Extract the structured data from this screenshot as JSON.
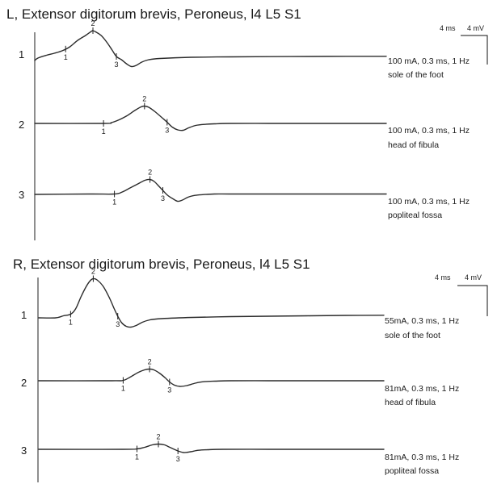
{
  "chart_data": [
    {
      "type": "line",
      "title": "L, Extensor digitorum brevis, Peroneus, l4 L5 S1",
      "scale_labels": [
        "4 ms",
        "4 mV"
      ],
      "traces": [
        {
          "row_label": "1",
          "stimulus": "100 mA, 0.3 ms, 1 Hz",
          "site": "sole of the foot",
          "markers": [
            {
              "label": "1",
              "t": 3.95
            },
            {
              "label": "2",
              "t": 7.45
            },
            {
              "label": "3",
              "t": 10.45
            }
          ],
          "points": [
            [
              0,
              -0.1
            ],
            [
              0.4,
              0.2
            ],
            [
              1.5,
              0.55
            ],
            [
              2.5,
              0.8
            ],
            [
              3.5,
              1.1
            ],
            [
              4.5,
              1.6
            ],
            [
              5.5,
              2.4
            ],
            [
              6.5,
              3.0
            ],
            [
              7.3,
              3.55
            ],
            [
              7.45,
              3.6
            ],
            [
              7.8,
              3.45
            ],
            [
              8.5,
              3.0
            ],
            [
              9.2,
              2.2
            ],
            [
              9.9,
              1.2
            ],
            [
              10.45,
              0.4
            ],
            [
              11.1,
              0.0
            ],
            [
              11.8,
              -0.55
            ],
            [
              12.4,
              -0.85
            ],
            [
              13.0,
              -0.7
            ],
            [
              13.7,
              -0.3
            ],
            [
              14.6,
              0.0
            ],
            [
              16,
              0.15
            ],
            [
              20,
              0.3
            ],
            [
              25,
              0.35
            ],
            [
              30,
              0.38
            ],
            [
              35,
              0.4
            ],
            [
              40,
              0.42
            ],
            [
              45,
              0.42
            ]
          ]
        },
        {
          "row_label": "2",
          "stimulus": "100 mA, 0.3 ms, 1 Hz",
          "site": "head of fibula",
          "markers": [
            {
              "label": "1",
              "t": 8.8
            },
            {
              "label": "2",
              "t": 14.05
            },
            {
              "label": "3",
              "t": 16.95
            }
          ],
          "points": [
            [
              0,
              0
            ],
            [
              8.8,
              0
            ],
            [
              9.8,
              0.1
            ],
            [
              10.8,
              0.45
            ],
            [
              11.8,
              0.95
            ],
            [
              12.8,
              1.6
            ],
            [
              13.6,
              2.05
            ],
            [
              14.05,
              2.15
            ],
            [
              14.6,
              2.0
            ],
            [
              15.4,
              1.45
            ],
            [
              16.3,
              0.7
            ],
            [
              16.95,
              0.15
            ],
            [
              17.6,
              -0.45
            ],
            [
              18.3,
              -0.8
            ],
            [
              19.0,
              -0.85
            ],
            [
              19.7,
              -0.55
            ],
            [
              20.6,
              -0.25
            ],
            [
              21.7,
              -0.12
            ],
            [
              23,
              -0.05
            ],
            [
              25,
              0
            ],
            [
              30,
              0
            ],
            [
              35,
              0
            ],
            [
              40,
              0
            ],
            [
              45,
              0
            ]
          ]
        },
        {
          "row_label": "3",
          "stimulus": "100 mA, 0.3 ms, 1 Hz",
          "site": "popliteal fossa",
          "markers": [
            {
              "label": "1",
              "t": 10.2
            },
            {
              "label": "2",
              "t": 14.75
            },
            {
              "label": "3",
              "t": 16.4
            }
          ],
          "points": [
            [
              0,
              0
            ],
            [
              7,
              0.05
            ],
            [
              10.2,
              0.05
            ],
            [
              11.2,
              0.3
            ],
            [
              12.2,
              0.8
            ],
            [
              13.2,
              1.3
            ],
            [
              14.1,
              1.75
            ],
            [
              14.75,
              1.85
            ],
            [
              15.3,
              1.6
            ],
            [
              16.0,
              0.9
            ],
            [
              16.4,
              0.5
            ],
            [
              17.0,
              -0.1
            ],
            [
              17.7,
              -0.55
            ],
            [
              18.3,
              -0.85
            ],
            [
              18.9,
              -0.7
            ],
            [
              19.6,
              -0.35
            ],
            [
              20.5,
              -0.12
            ],
            [
              21.6,
              -0.02
            ],
            [
              23,
              0.05
            ],
            [
              25,
              0.05
            ],
            [
              30,
              0.05
            ],
            [
              35,
              0.05
            ],
            [
              40,
              0.05
            ],
            [
              45,
              0.05
            ]
          ]
        }
      ]
    },
    {
      "type": "line",
      "title": "R, Extensor digitorum brevis, Peroneus, l4 L5 S1",
      "scale_labels": [
        "4 ms",
        "4 mV"
      ],
      "traces": [
        {
          "row_label": "1",
          "stimulus": "55mA, 0.3 ms, 1 Hz",
          "site": "sole of the foot",
          "markers": [
            {
              "label": "1",
              "t": 4.15
            },
            {
              "label": "2",
              "t": 7.1
            },
            {
              "label": "3",
              "t": 10.3
            }
          ],
          "points": [
            [
              0,
              0
            ],
            [
              2.2,
              0
            ],
            [
              3.2,
              0.25
            ],
            [
              4.15,
              0.45
            ],
            [
              4.8,
              1.1
            ],
            [
              5.5,
              2.6
            ],
            [
              6.2,
              3.9
            ],
            [
              6.7,
              4.6
            ],
            [
              7.1,
              4.85
            ],
            [
              7.6,
              4.7
            ],
            [
              8.4,
              3.9
            ],
            [
              9.2,
              2.5
            ],
            [
              9.8,
              1.2
            ],
            [
              10.3,
              0.2
            ],
            [
              10.8,
              -0.6
            ],
            [
              11.4,
              -1.05
            ],
            [
              12.0,
              -1.15
            ],
            [
              12.7,
              -0.95
            ],
            [
              13.5,
              -0.55
            ],
            [
              14.5,
              -0.25
            ],
            [
              16,
              -0.1
            ],
            [
              20,
              0.05
            ],
            [
              25,
              0.15
            ],
            [
              30,
              0.2
            ],
            [
              35,
              0.25
            ],
            [
              40,
              0.3
            ],
            [
              45,
              0.32
            ]
          ]
        },
        {
          "row_label": "2",
          "stimulus": "81mA, 0.3 ms, 1 Hz",
          "site": "head of fibula",
          "markers": [
            {
              "label": "1",
              "t": 11.0
            },
            {
              "label": "2",
              "t": 14.45
            },
            {
              "label": "3",
              "t": 17.05
            }
          ],
          "points": [
            [
              0,
              0
            ],
            [
              9.5,
              0
            ],
            [
              11.0,
              0.05
            ],
            [
              12.0,
              0.5
            ],
            [
              13.0,
              1.05
            ],
            [
              13.8,
              1.35
            ],
            [
              14.45,
              1.45
            ],
            [
              15.0,
              1.35
            ],
            [
              15.8,
              0.9
            ],
            [
              16.5,
              0.35
            ],
            [
              17.05,
              -0.15
            ],
            [
              17.7,
              -0.55
            ],
            [
              18.4,
              -0.7
            ],
            [
              19.3,
              -0.6
            ],
            [
              20.4,
              -0.3
            ],
            [
              21.5,
              -0.12
            ],
            [
              23,
              -0.05
            ],
            [
              25,
              0
            ],
            [
              30,
              0
            ],
            [
              35,
              0
            ],
            [
              40,
              0
            ],
            [
              45,
              0
            ]
          ]
        },
        {
          "row_label": "3",
          "stimulus": "81mA, 0.3 ms, 1 Hz",
          "site": "popliteal fossa",
          "markers": [
            {
              "label": "1",
              "t": 12.8
            },
            {
              "label": "2",
              "t": 15.6
            },
            {
              "label": "3",
              "t": 18.15
            }
          ],
          "points": [
            [
              0,
              0
            ],
            [
              11,
              0
            ],
            [
              12.8,
              0.05
            ],
            [
              13.8,
              0.25
            ],
            [
              14.8,
              0.55
            ],
            [
              15.6,
              0.65
            ],
            [
              16.4,
              0.55
            ],
            [
              17.2,
              0.2
            ],
            [
              18.15,
              -0.2
            ],
            [
              18.9,
              -0.4
            ],
            [
              19.8,
              -0.3
            ],
            [
              20.8,
              -0.12
            ],
            [
              22,
              -0.05
            ],
            [
              24,
              0
            ],
            [
              30,
              0
            ],
            [
              35,
              0
            ],
            [
              40,
              0
            ],
            [
              45,
              0
            ]
          ]
        }
      ]
    }
  ]
}
